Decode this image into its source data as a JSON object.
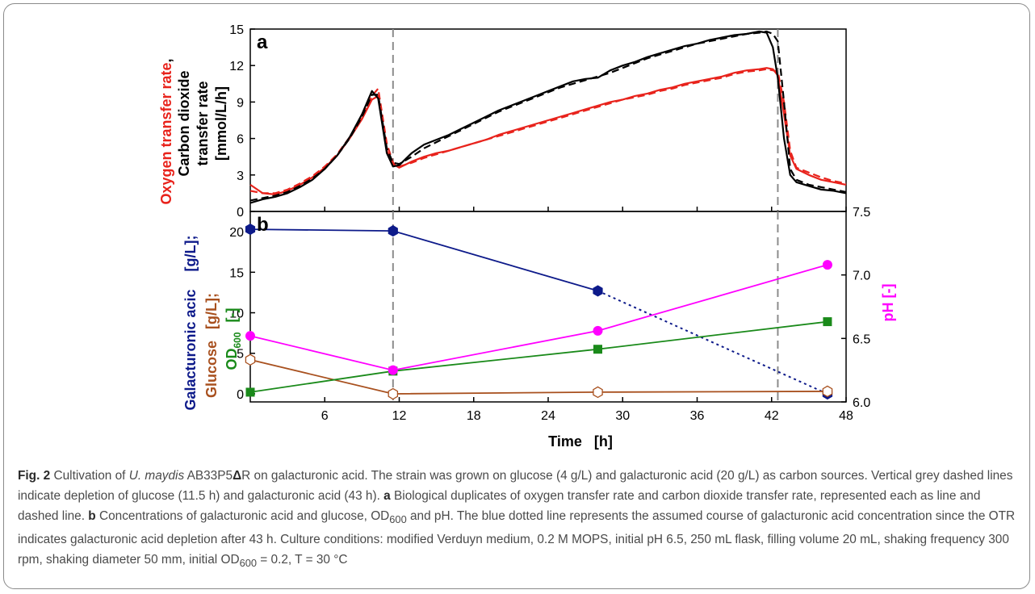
{
  "chart_data": [
    {
      "panel": "a",
      "type": "line",
      "xlim": [
        0,
        48
      ],
      "ylim": [
        0,
        15
      ],
      "xticks": [
        6,
        12,
        18,
        24,
        30,
        36,
        42,
        48
      ],
      "yticks": [
        0,
        3,
        6,
        9,
        12,
        15
      ],
      "ylabel_parts": [
        "Oxygen transfer rate",
        ",",
        "Carbon dioxide",
        "transfer rate",
        "[mmol/L/h]"
      ],
      "vlines": [
        11.5,
        42.5
      ],
      "series": [
        {
          "role": "OTR replicate 1",
          "style": "solid",
          "color": "#e8231c",
          "x": [
            0,
            1,
            2,
            3,
            4,
            5,
            6,
            7,
            8,
            9,
            9.8,
            10.3,
            11,
            11.5,
            12,
            13,
            14,
            15,
            16,
            17,
            18,
            19,
            20,
            21,
            22,
            23,
            24,
            25,
            26,
            27,
            28,
            29,
            30,
            31,
            32,
            33,
            34,
            35,
            36,
            37,
            38,
            39,
            40,
            41,
            41.6,
            42.1,
            42.5,
            43,
            43.5,
            44,
            45,
            46,
            47,
            48
          ],
          "y": [
            2.2,
            1.5,
            1.4,
            1.7,
            2.2,
            2.8,
            3.6,
            4.6,
            6.0,
            7.6,
            9.2,
            9.5,
            5.0,
            3.9,
            3.6,
            4.1,
            4.5,
            4.8,
            5.0,
            5.3,
            5.6,
            5.9,
            6.3,
            6.6,
            6.9,
            7.2,
            7.5,
            7.8,
            8.1,
            8.4,
            8.7,
            9.0,
            9.2,
            9.5,
            9.7,
            10.0,
            10.2,
            10.5,
            10.7,
            10.9,
            11.1,
            11.4,
            11.6,
            11.7,
            11.8,
            11.7,
            11.2,
            8.0,
            4.6,
            3.5,
            3.0,
            2.6,
            2.4,
            2.2
          ]
        },
        {
          "role": "OTR replicate 2",
          "style": "dashed",
          "color": "#e8231c",
          "x": [
            0,
            1,
            2,
            3,
            4,
            5,
            6,
            7,
            8,
            9,
            9.8,
            10.3,
            11,
            11.5,
            12,
            13,
            14,
            15,
            16,
            17,
            18,
            19,
            20,
            21,
            22,
            23,
            24,
            25,
            26,
            27,
            28,
            29,
            30,
            31,
            32,
            33,
            34,
            35,
            36,
            37,
            38,
            39,
            40,
            41,
            41.6,
            42.1,
            42.5,
            43,
            43.5,
            44,
            45,
            46,
            47,
            48
          ],
          "y": [
            1.7,
            1.5,
            1.5,
            1.8,
            2.3,
            2.9,
            3.7,
            4.7,
            6.1,
            7.8,
            9.5,
            10.1,
            5.6,
            4.0,
            3.7,
            4.0,
            4.4,
            4.7,
            5.0,
            5.3,
            5.6,
            5.9,
            6.2,
            6.5,
            6.8,
            7.1,
            7.4,
            7.7,
            8.0,
            8.3,
            8.6,
            8.9,
            9.2,
            9.4,
            9.6,
            9.9,
            10.1,
            10.4,
            10.6,
            10.8,
            11.0,
            11.3,
            11.5,
            11.6,
            11.7,
            11.6,
            11.5,
            9.0,
            5.0,
            3.6,
            3.2,
            2.8,
            2.5,
            2.3
          ]
        },
        {
          "role": "CTR replicate 1",
          "style": "solid",
          "color": "#000000",
          "x": [
            0,
            1,
            2,
            3,
            4,
            5,
            6,
            7,
            8,
            9,
            9.8,
            10.3,
            11,
            11.5,
            12,
            13,
            14,
            15,
            16,
            17,
            18,
            19,
            20,
            21,
            22,
            23,
            24,
            25,
            26,
            27,
            28,
            29,
            30,
            31,
            32,
            33,
            34,
            35,
            36,
            37,
            38,
            39,
            40,
            41,
            41.6,
            42.1,
            42.5,
            43,
            43.5,
            44,
            45,
            46,
            47,
            48
          ],
          "y": [
            0.7,
            1.0,
            1.2,
            1.5,
            2.0,
            2.6,
            3.5,
            4.6,
            6.1,
            8.0,
            9.9,
            9.3,
            4.8,
            3.7,
            3.8,
            4.8,
            5.5,
            5.9,
            6.3,
            6.8,
            7.3,
            7.8,
            8.3,
            8.7,
            9.1,
            9.5,
            9.9,
            10.3,
            10.7,
            10.9,
            11.0,
            11.6,
            12.0,
            12.3,
            12.7,
            13.0,
            13.3,
            13.6,
            13.8,
            14.1,
            14.3,
            14.5,
            14.6,
            14.8,
            14.7,
            13.5,
            11.0,
            6.0,
            3.0,
            2.4,
            2.1,
            1.8,
            1.7,
            1.5
          ]
        },
        {
          "role": "CTR replicate 2",
          "style": "dashed",
          "color": "#000000",
          "x": [
            0,
            1,
            2,
            3,
            4,
            5,
            6,
            7,
            8,
            9,
            9.8,
            10.3,
            11,
            11.5,
            12,
            13,
            14,
            15,
            16,
            17,
            18,
            19,
            20,
            21,
            22,
            23,
            24,
            25,
            26,
            27,
            28,
            29,
            30,
            31,
            32,
            33,
            34,
            35,
            36,
            37,
            38,
            39,
            40,
            41,
            41.6,
            42.1,
            42.5,
            43,
            43.5,
            44,
            45,
            46,
            47,
            48
          ],
          "y": [
            0.9,
            1.1,
            1.3,
            1.6,
            2.1,
            2.7,
            3.5,
            4.6,
            6.0,
            7.8,
            9.6,
            9.6,
            5.2,
            4.0,
            3.9,
            4.5,
            5.2,
            5.7,
            6.2,
            6.7,
            7.2,
            7.7,
            8.2,
            8.6,
            9.0,
            9.4,
            9.8,
            10.2,
            10.5,
            10.8,
            11.1,
            11.4,
            11.8,
            12.2,
            12.6,
            12.9,
            13.2,
            13.5,
            13.8,
            14.0,
            14.2,
            14.4,
            14.6,
            14.7,
            14.8,
            14.6,
            14.0,
            9.0,
            3.5,
            2.6,
            2.2,
            2.0,
            1.8,
            1.6
          ]
        }
      ]
    },
    {
      "panel": "b",
      "type": "scatter",
      "xlabel": "Time   [h]",
      "xlim": [
        0,
        48
      ],
      "ylim": [
        -1,
        22.5
      ],
      "y2lim": [
        6.0,
        7.5
      ],
      "xticks": [
        6,
        12,
        18,
        24,
        30,
        36,
        42,
        48
      ],
      "yticks": [
        0,
        5,
        10,
        15,
        20
      ],
      "y2ticks": [
        6.0,
        6.5,
        7.0,
        7.5
      ],
      "ylabel_parts": [
        "Galacturonic acic",
        "[g/L];",
        "Glucose",
        "[g/L];",
        "OD",
        "600",
        "[-]"
      ],
      "y2label": "pH  [-]",
      "vlines": [
        11.5,
        42.5
      ],
      "series": [
        {
          "role": "galacturonic acid",
          "color": "#0d1a8a",
          "marker": "hexagon",
          "axis": "left",
          "x": [
            0,
            11.5,
            28
          ],
          "y": [
            20.3,
            20.1,
            12.7
          ],
          "assumed": {
            "x": [
              28,
              46.5
            ],
            "y": [
              12.7,
              0
            ]
          }
        },
        {
          "role": "glucose",
          "color": "#a8501e",
          "marker": "hexagon-open",
          "axis": "left",
          "x": [
            0,
            11.5,
            28,
            46.5
          ],
          "y": [
            4.2,
            0.0,
            0.2,
            0.3
          ]
        },
        {
          "role": "OD600",
          "color": "#1a8a1a",
          "marker": "square",
          "axis": "left",
          "x": [
            0,
            11.5,
            28,
            46.5
          ],
          "y": [
            0.2,
            2.8,
            5.5,
            8.9
          ]
        },
        {
          "role": "pH",
          "color": "#ff00ff",
          "marker": "circle",
          "axis": "right",
          "x": [
            0,
            11.5,
            28,
            46.5
          ],
          "y": [
            6.52,
            6.25,
            6.56,
            7.08
          ]
        }
      ]
    }
  ],
  "caption": {
    "fig_label": "Fig. 2",
    "t1": " Cultivation of ",
    "species": "U. maydis",
    "t2": " AB33P5",
    "delta": "Δ",
    "t3": "R on galacturonic acid. The strain was grown on glucose (4 g/L) and galacturonic acid (20 g/L) as carbon sources. Vertical grey dashed lines indicate depletion of glucose (11.5 h) and galacturonic acid (43 h). ",
    "a": "a",
    "t4": " Biological duplicates of oxygen transfer rate and carbon dioxide transfer rate, represented each as line and dashed line. ",
    "b": "b",
    "t5": " Concentrations of galacturonic acid and glucose, OD",
    "sub1": "600",
    "t6": " and pH. The blue dotted line represents the assumed course of galacturonic acid concentration since the OTR indicates galacturonic acid depletion after 43 h. Culture conditions: modified Verduyn medium, 0.2 M MOPS, initial pH 6.5, 250 mL flask, filling volume 20 mL, shaking frequency 300 rpm, shaking diameter 50 mm, initial OD",
    "sub2": "600",
    "t7": " = 0.2, T = 30 °C"
  }
}
